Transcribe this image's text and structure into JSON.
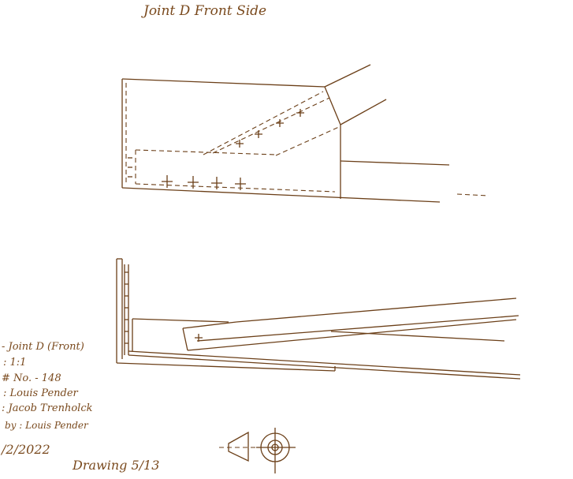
{
  "title": "Joint D Front Side",
  "title_block": {
    "name": "- Joint D (Front)",
    "scale": ": 1:1",
    "part_no": "# No. - 148",
    "drawn": ": Louis Pender",
    "checked": ": Jacob Trenholck",
    "approved": "by : Louis Pender",
    "date": "/2/2022",
    "drawing": "Drawing 5/13"
  },
  "ink_color": "#6b3f18"
}
